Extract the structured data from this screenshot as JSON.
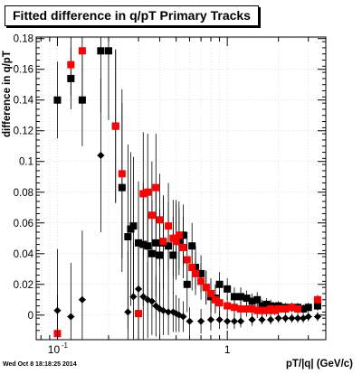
{
  "chart_data": {
    "type": "scatter",
    "title": "Fitted difference in q/pT  Primary Tracks",
    "xlabel": "pT/|q| (GeV/c)",
    "ylabel": "difference in q/pT",
    "xscale": "log",
    "xlim": [
      0.075,
      3.8
    ],
    "ylim": [
      -0.016,
      0.181
    ],
    "x_tick_labels": [
      {
        "value": 0.1,
        "label": "10",
        "sup": "-1"
      },
      {
        "value": 1,
        "label": "1",
        "sup": ""
      }
    ],
    "y_ticks": [
      0,
      0.02,
      0.04,
      0.06,
      0.08,
      0.1,
      0.12,
      0.14,
      0.16,
      0.18
    ],
    "y_tick_labels": [
      "0",
      "0.02",
      "0.04",
      "0.06",
      "0.08",
      "0.1",
      "0.12",
      "0.14",
      "0.16",
      "0.18"
    ],
    "grid": true,
    "series": [
      {
        "marker": "square",
        "color": "#000000",
        "x": [
          0.1,
          0.12,
          0.14,
          0.18,
          0.2,
          0.22,
          0.24,
          0.26,
          0.27,
          0.28,
          0.3,
          0.32,
          0.34,
          0.36,
          0.38,
          0.4,
          0.42,
          0.45,
          0.48,
          0.5,
          0.52,
          0.55,
          0.58,
          0.62,
          0.65,
          0.7,
          0.75,
          0.8,
          0.85,
          0.9,
          1.0,
          1.1,
          1.2,
          1.3,
          1.4,
          1.5,
          1.6,
          1.7,
          1.8,
          1.9,
          2.0,
          2.2,
          2.4,
          2.6,
          2.8,
          3.0,
          3.4
        ],
        "y": [
          0.14,
          0.154,
          0.14,
          0.172,
          0.172,
          0.123,
          0.083,
          0.051,
          0.056,
          0.058,
          0.047,
          0.046,
          0.045,
          0.04,
          0.047,
          0.039,
          0.047,
          0.045,
          0.039,
          0.05,
          0.048,
          0.052,
          0.02,
          0.045,
          0.031,
          0.027,
          0.018,
          0.012,
          0.011,
          0.02,
          0.017,
          0.012,
          0.012,
          0.011,
          0.009,
          0.01,
          0.006,
          0.007,
          0.006,
          0.005,
          0.006,
          0.005,
          0.005,
          0.005,
          0.004,
          0.005,
          0.006
        ],
        "err": [
          0.025,
          0.02,
          0.03,
          0.04,
          0.045,
          0.05,
          0.055,
          0.06,
          0.05,
          0.045,
          0.04,
          0.04,
          0.038,
          0.035,
          0.035,
          0.03,
          0.03,
          0.028,
          0.025,
          0.025,
          0.022,
          0.02,
          0.018,
          0.015,
          0.014,
          0.012,
          0.011,
          0.01,
          0.009,
          0.008,
          0.007,
          0.006,
          0.006,
          0.005,
          0.005,
          0.005,
          0.004,
          0.004,
          0.004,
          0.003,
          0.003,
          0.003,
          0.003,
          0.003,
          0.003,
          0.003,
          0.003
        ]
      },
      {
        "marker": "square",
        "color": "#ff0000",
        "x": [
          0.1,
          0.12,
          0.14,
          0.22,
          0.24,
          0.3,
          0.32,
          0.34,
          0.36,
          0.38,
          0.4,
          0.42,
          0.45,
          0.48,
          0.5,
          0.52,
          0.55,
          0.58,
          0.62,
          0.65,
          0.7,
          0.75,
          0.8,
          0.85,
          0.9,
          1.0,
          1.1,
          1.2,
          1.3,
          1.4,
          1.5,
          1.6,
          1.7,
          1.8,
          1.9,
          2.0,
          2.2,
          2.4,
          2.6,
          3.4
        ],
        "y": [
          -0.012,
          0.163,
          0.172,
          0.123,
          0.092,
          0.001,
          0.079,
          0.08,
          0.065,
          0.083,
          0.062,
          0.048,
          0.058,
          0.05,
          0.048,
          0.052,
          0.044,
          0.036,
          0.031,
          0.027,
          0.022,
          0.018,
          0.014,
          0.01,
          0.008,
          0.006,
          0.005,
          0.004,
          0.004,
          0.004,
          0.003,
          0.003,
          0.003,
          0.004,
          0.003,
          0.004,
          0.004,
          0.005,
          0.004,
          0.01
        ],
        "err": [
          0.025,
          0.02,
          0.03,
          0.05,
          0.055,
          0.04,
          0.04,
          0.038,
          0.035,
          0.035,
          0.03,
          0.03,
          0.028,
          0.025,
          0.025,
          0.022,
          0.02,
          0.018,
          0.015,
          0.014,
          0.012,
          0.011,
          0.01,
          0.009,
          0.008,
          0.007,
          0.006,
          0.006,
          0.005,
          0.005,
          0.005,
          0.004,
          0.004,
          0.004,
          0.003,
          0.003,
          0.003,
          0.003,
          0.003,
          0.003
        ]
      },
      {
        "marker": "diamond",
        "color": "#000000",
        "x": [
          0.1,
          0.12,
          0.14,
          0.18,
          0.26,
          0.28,
          0.3,
          0.32,
          0.34,
          0.36,
          0.38,
          0.4,
          0.42,
          0.45,
          0.48,
          0.5,
          0.52,
          0.55,
          0.6,
          0.7,
          0.8,
          0.9,
          1.0,
          1.1,
          1.2,
          1.4,
          1.6,
          1.8,
          2.0,
          2.2,
          2.4,
          2.6,
          2.8,
          3.0,
          3.4
        ],
        "y": [
          0.003,
          -0.001,
          0.01,
          0.104,
          0.002,
          0.012,
          0.017,
          0.012,
          0.01,
          0.009,
          0.006,
          0.004,
          0.003,
          0.002,
          0.002,
          0.001,
          0.0,
          -0.001,
          -0.004,
          -0.004,
          -0.003,
          -0.003,
          -0.004,
          -0.004,
          -0.004,
          -0.003,
          -0.003,
          -0.003,
          -0.002,
          -0.002,
          -0.002,
          -0.002,
          -0.002,
          -0.001,
          -0.001
        ],
        "err": [
          0.04,
          0.035,
          0.045,
          0.05,
          0.04,
          0.035,
          0.03,
          0.028,
          0.025,
          0.022,
          0.02,
          0.018,
          0.016,
          0.015,
          0.013,
          0.012,
          0.011,
          0.01,
          0.009,
          0.008,
          0.007,
          0.006,
          0.005,
          0.005,
          0.004,
          0.004,
          0.003,
          0.003,
          0.003,
          0.003,
          0.003,
          0.003,
          0.003,
          0.003,
          0.003
        ]
      }
    ]
  },
  "footer": {
    "datetime": "Wed Oct  8 18:18:25 2014"
  }
}
